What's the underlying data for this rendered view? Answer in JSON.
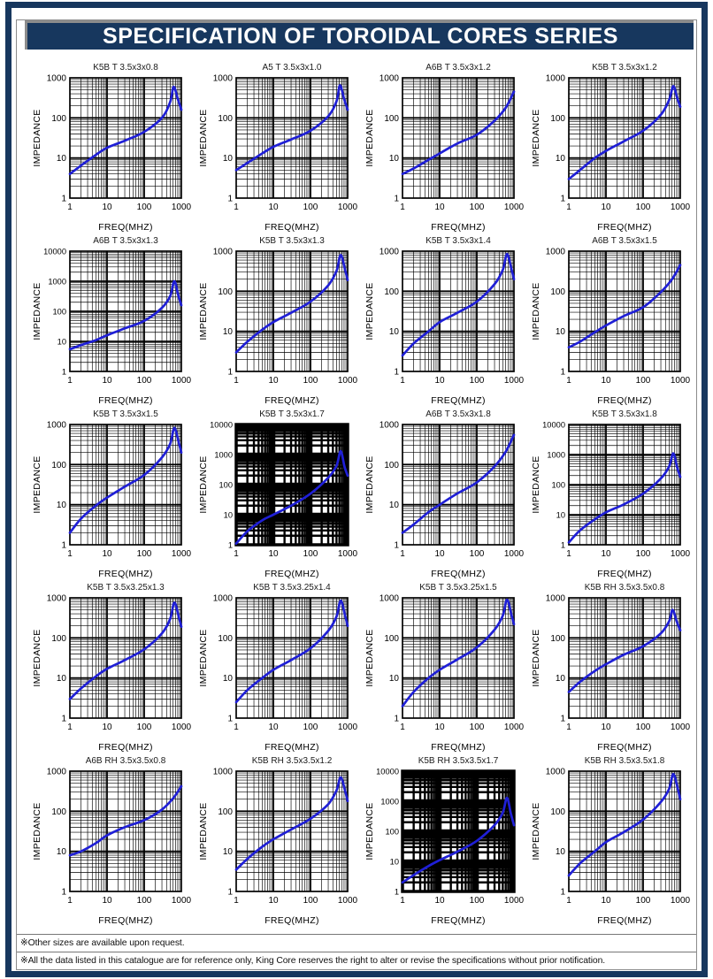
{
  "page": {
    "title": "SPECIFICATION OF TOROIDAL CORES SERIES",
    "notes": [
      "※Other sizes are available upon request.",
      "※All the data listed in this catalogue are for reference only, King Core reserves the right to alter or revise the specifications without prior notification."
    ],
    "colors": {
      "navy": "#17375E",
      "frame_gray": "#8C8C8C",
      "curve_blue": "#1F1FD6",
      "grid_black": "#000000"
    }
  },
  "chart_data": {
    "type": "line",
    "shared": {
      "xlabel": "FREQ(MHZ)",
      "ylabel": "IMPEDANCE",
      "x_scale": "log",
      "y_scale": "log",
      "xlim": [
        1,
        1000
      ],
      "x_ticks": [
        1,
        10,
        100,
        1000
      ],
      "grid": true,
      "legend": "none",
      "series_name": "impedance_vs_frequency"
    },
    "charts": [
      {
        "title": "K5B T 3.5x3x0.8",
        "ylim": [
          1,
          1000
        ],
        "dense_grid": false,
        "points": [
          [
            1,
            4
          ],
          [
            2,
            6.5
          ],
          [
            5,
            12
          ],
          [
            10,
            18
          ],
          [
            30,
            27
          ],
          [
            100,
            45
          ],
          [
            300,
            100
          ],
          [
            500,
            250
          ],
          [
            620,
            600
          ],
          [
            800,
            300
          ],
          [
            1000,
            160
          ]
        ]
      },
      {
        "title": "A5 T 3.5x3x1.0",
        "ylim": [
          1,
          1000
        ],
        "dense_grid": false,
        "points": [
          [
            1,
            5
          ],
          [
            2,
            7.5
          ],
          [
            5,
            13
          ],
          [
            10,
            19
          ],
          [
            30,
            29
          ],
          [
            100,
            48
          ],
          [
            300,
            110
          ],
          [
            500,
            260
          ],
          [
            620,
            650
          ],
          [
            800,
            300
          ],
          [
            1000,
            160
          ]
        ]
      },
      {
        "title": "A6B T 3.5x3x1.2",
        "ylim": [
          1,
          1000
        ],
        "dense_grid": false,
        "points": [
          [
            1,
            4
          ],
          [
            2,
            5.5
          ],
          [
            5,
            9
          ],
          [
            10,
            13
          ],
          [
            30,
            23
          ],
          [
            100,
            38
          ],
          [
            300,
            85
          ],
          [
            600,
            180
          ],
          [
            1000,
            450
          ]
        ]
      },
      {
        "title": "K5B T 3.5x3x1.2",
        "ylim": [
          1,
          1000
        ],
        "dense_grid": false,
        "points": [
          [
            1,
            3
          ],
          [
            2,
            5
          ],
          [
            5,
            10
          ],
          [
            10,
            15
          ],
          [
            30,
            26
          ],
          [
            100,
            48
          ],
          [
            300,
            120
          ],
          [
            500,
            280
          ],
          [
            650,
            620
          ],
          [
            820,
            320
          ],
          [
            1000,
            190
          ]
        ]
      },
      {
        "title": "A6B T 3.5x3x1.3",
        "ylim": [
          1,
          10000
        ],
        "dense_grid": false,
        "points": [
          [
            1,
            5.5
          ],
          [
            2,
            7.5
          ],
          [
            5,
            11
          ],
          [
            10,
            16
          ],
          [
            30,
            27
          ],
          [
            100,
            48
          ],
          [
            300,
            130
          ],
          [
            500,
            320
          ],
          [
            650,
            1000
          ],
          [
            820,
            350
          ],
          [
            1000,
            160
          ]
        ]
      },
      {
        "title": "K5B T 3.5x3x1.3",
        "ylim": [
          1,
          1000
        ],
        "dense_grid": false,
        "points": [
          [
            1,
            3
          ],
          [
            2,
            5.5
          ],
          [
            5,
            11
          ],
          [
            10,
            17
          ],
          [
            30,
            29
          ],
          [
            100,
            55
          ],
          [
            300,
            140
          ],
          [
            500,
            320
          ],
          [
            650,
            800
          ],
          [
            850,
            350
          ],
          [
            1000,
            190
          ]
        ]
      },
      {
        "title": "K5B T 3.5x3x1.4",
        "ylim": [
          1,
          1000
        ],
        "dense_grid": false,
        "points": [
          [
            1,
            2.5
          ],
          [
            2,
            5
          ],
          [
            5,
            10
          ],
          [
            10,
            17
          ],
          [
            30,
            29
          ],
          [
            100,
            55
          ],
          [
            300,
            150
          ],
          [
            500,
            340
          ],
          [
            650,
            850
          ],
          [
            850,
            370
          ],
          [
            1000,
            200
          ]
        ]
      },
      {
        "title": "A6B T 3.5x3x1.5",
        "ylim": [
          1,
          1000
        ],
        "dense_grid": false,
        "points": [
          [
            1,
            4
          ],
          [
            2,
            5.5
          ],
          [
            5,
            9.5
          ],
          [
            10,
            14
          ],
          [
            30,
            24
          ],
          [
            100,
            40
          ],
          [
            300,
            95
          ],
          [
            600,
            200
          ],
          [
            1000,
            450
          ]
        ]
      },
      {
        "title": "K5B T 3.5x3x1.5",
        "ylim": [
          1,
          1000
        ],
        "dense_grid": false,
        "points": [
          [
            1,
            2
          ],
          [
            2,
            4.5
          ],
          [
            5,
            9.5
          ],
          [
            10,
            15
          ],
          [
            30,
            28
          ],
          [
            100,
            55
          ],
          [
            300,
            150
          ],
          [
            500,
            330
          ],
          [
            650,
            820
          ],
          [
            850,
            360
          ],
          [
            1000,
            200
          ]
        ]
      },
      {
        "title": "K5B T 3.5x3x1.7",
        "ylim": [
          1,
          10000
        ],
        "dense_grid": true,
        "points": [
          [
            1,
            1.1
          ],
          [
            2,
            2.8
          ],
          [
            5,
            6.5
          ],
          [
            10,
            10
          ],
          [
            30,
            20
          ],
          [
            100,
            50
          ],
          [
            300,
            170
          ],
          [
            500,
            420
          ],
          [
            650,
            1300
          ],
          [
            820,
            400
          ],
          [
            1000,
            200
          ]
        ]
      },
      {
        "title": "A6B T 3.5x3x1.8",
        "ylim": [
          1,
          1000
        ],
        "dense_grid": false,
        "points": [
          [
            1,
            2
          ],
          [
            2,
            3.2
          ],
          [
            5,
            6.5
          ],
          [
            10,
            10
          ],
          [
            30,
            19
          ],
          [
            100,
            36
          ],
          [
            300,
            90
          ],
          [
            600,
            210
          ],
          [
            1000,
            550
          ]
        ]
      },
      {
        "title": "K5B T 3.5x3x1.8",
        "ylim": [
          1,
          10000
        ],
        "dense_grid": false,
        "points": [
          [
            1,
            1.2
          ],
          [
            2,
            3
          ],
          [
            5,
            7
          ],
          [
            10,
            12
          ],
          [
            30,
            22
          ],
          [
            100,
            50
          ],
          [
            300,
            160
          ],
          [
            500,
            400
          ],
          [
            650,
            1100
          ],
          [
            820,
            380
          ],
          [
            1000,
            180
          ]
        ]
      },
      {
        "title": "K5B T 3.5x3.25x1.3",
        "ylim": [
          1,
          1000
        ],
        "dense_grid": false,
        "points": [
          [
            1,
            3
          ],
          [
            2,
            5.5
          ],
          [
            5,
            11
          ],
          [
            10,
            17
          ],
          [
            30,
            28
          ],
          [
            100,
            52
          ],
          [
            300,
            130
          ],
          [
            500,
            300
          ],
          [
            650,
            760
          ],
          [
            850,
            340
          ],
          [
            1000,
            190
          ]
        ]
      },
      {
        "title": "K5B T 3.5x3.25x1.4",
        "ylim": [
          1,
          1000
        ],
        "dense_grid": false,
        "points": [
          [
            1,
            2.5
          ],
          [
            2,
            5
          ],
          [
            5,
            10
          ],
          [
            10,
            16
          ],
          [
            30,
            28
          ],
          [
            100,
            55
          ],
          [
            300,
            150
          ],
          [
            500,
            340
          ],
          [
            650,
            850
          ],
          [
            850,
            370
          ],
          [
            1000,
            200
          ]
        ]
      },
      {
        "title": "K5B T 3.5x3.25x1.5",
        "ylim": [
          1,
          1000
        ],
        "dense_grid": false,
        "points": [
          [
            1,
            2
          ],
          [
            2,
            4.5
          ],
          [
            5,
            10
          ],
          [
            10,
            16
          ],
          [
            30,
            29
          ],
          [
            100,
            58
          ],
          [
            300,
            160
          ],
          [
            500,
            360
          ],
          [
            650,
            900
          ],
          [
            850,
            390
          ],
          [
            1000,
            220
          ]
        ]
      },
      {
        "title": "K5B RH 3.5x3.5x0.8",
        "ylim": [
          1,
          1000
        ],
        "dense_grid": false,
        "points": [
          [
            1,
            4.5
          ],
          [
            2,
            8
          ],
          [
            5,
            15
          ],
          [
            10,
            22
          ],
          [
            30,
            38
          ],
          [
            100,
            62
          ],
          [
            300,
            130
          ],
          [
            500,
            260
          ],
          [
            620,
            500
          ],
          [
            800,
            260
          ],
          [
            1000,
            155
          ]
        ]
      },
      {
        "title": "A6B RH 3.5x3.5x0.8",
        "ylim": [
          1,
          1000
        ],
        "dense_grid": false,
        "points": [
          [
            1,
            8
          ],
          [
            2,
            10
          ],
          [
            5,
            16
          ],
          [
            10,
            25
          ],
          [
            30,
            40
          ],
          [
            100,
            60
          ],
          [
            300,
            110
          ],
          [
            600,
            210
          ],
          [
            1000,
            420
          ]
        ]
      },
      {
        "title": "K5B RH 3.5x3.5x1.2",
        "ylim": [
          1,
          1000
        ],
        "dense_grid": false,
        "points": [
          [
            1,
            3.5
          ],
          [
            2,
            6.5
          ],
          [
            5,
            13
          ],
          [
            10,
            20
          ],
          [
            30,
            35
          ],
          [
            100,
            65
          ],
          [
            300,
            150
          ],
          [
            500,
            330
          ],
          [
            650,
            700
          ],
          [
            850,
            330
          ],
          [
            1000,
            180
          ]
        ]
      },
      {
        "title": "K5B RH 3.5x3.5x1.7",
        "ylim": [
          1,
          10000
        ],
        "dense_grid": true,
        "points": [
          [
            1,
            2
          ],
          [
            2,
            3.5
          ],
          [
            5,
            7
          ],
          [
            10,
            11
          ],
          [
            30,
            21
          ],
          [
            100,
            48
          ],
          [
            300,
            160
          ],
          [
            500,
            420
          ],
          [
            650,
            1300
          ],
          [
            820,
            400
          ],
          [
            1000,
            160
          ]
        ]
      },
      {
        "title": "K5B RH 3.5x3.5x1.8",
        "ylim": [
          1,
          1000
        ],
        "dense_grid": false,
        "points": [
          [
            1,
            2.5
          ],
          [
            2,
            5
          ],
          [
            5,
            10
          ],
          [
            10,
            17
          ],
          [
            30,
            30
          ],
          [
            100,
            62
          ],
          [
            300,
            170
          ],
          [
            500,
            360
          ],
          [
            650,
            850
          ],
          [
            850,
            380
          ],
          [
            1000,
            200
          ]
        ]
      }
    ]
  }
}
